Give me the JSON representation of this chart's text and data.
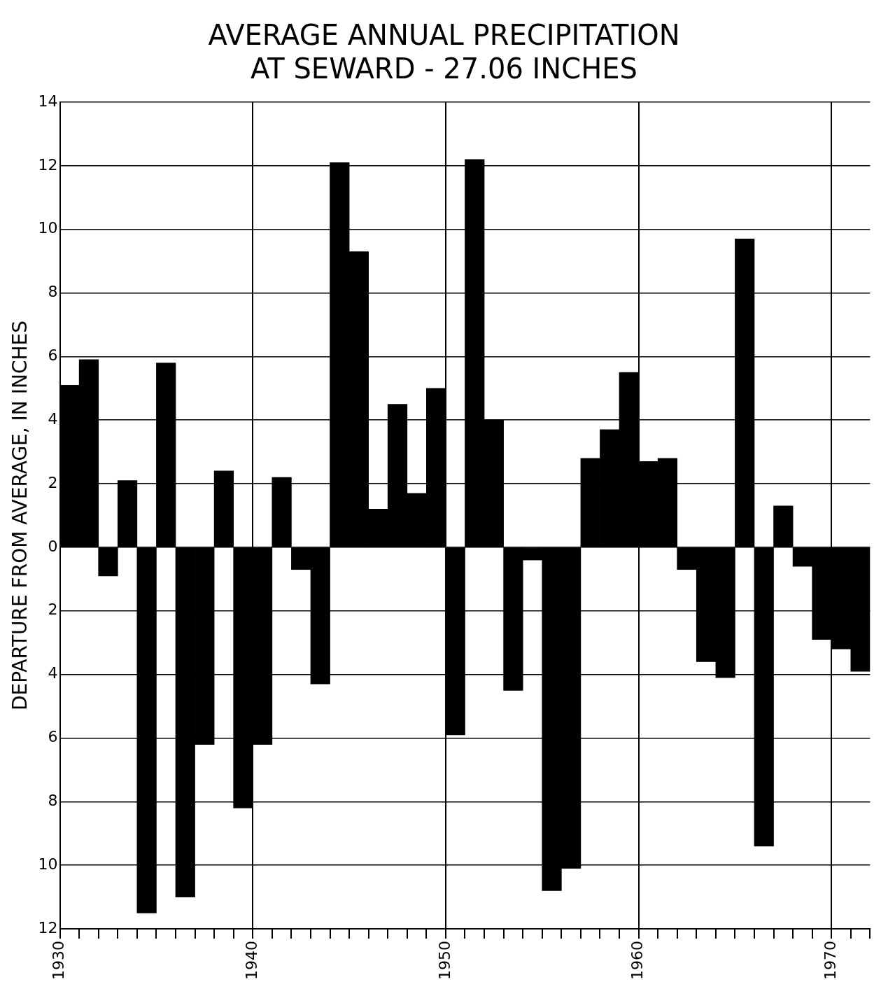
{
  "chart_data": {
    "type": "bar",
    "title": "AVERAGE ANNUAL PRECIPITATION\nAT SEWARD - 27.06 INCHES",
    "ylabel": "DEPARTURE FROM AVERAGE, IN INCHES",
    "categories": [
      "1930",
      null,
      null,
      null,
      null,
      null,
      null,
      null,
      null,
      null,
      "1940",
      null,
      null,
      null,
      null,
      null,
      null,
      null,
      null,
      null,
      "1950",
      null,
      null,
      null,
      null,
      null,
      null,
      null,
      null,
      null,
      "1960",
      null,
      null,
      null,
      null,
      null,
      null,
      null,
      null,
      null,
      "1970",
      null
    ],
    "values": [
      5.1,
      5.9,
      -0.9,
      2.1,
      -11.5,
      5.8,
      -11.0,
      -6.2,
      2.4,
      -8.2,
      -6.2,
      2.2,
      -0.7,
      -4.3,
      12.1,
      9.3,
      1.2,
      4.5,
      1.7,
      5.0,
      -5.9,
      12.2,
      4.0,
      -4.5,
      -0.4,
      -10.8,
      -10.1,
      2.8,
      3.7,
      5.5,
      2.7,
      2.8,
      -0.7,
      -3.6,
      -4.1,
      9.7,
      -9.4,
      1.3,
      -0.6,
      -2.9,
      -3.2,
      -3.9
    ],
    "color": "#000000",
    "ylim": [
      -12,
      14
    ],
    "yticks": [
      {
        "value": -12,
        "label": "12"
      },
      {
        "value": -10,
        "label": "10"
      },
      {
        "value": -8,
        "label": "8"
      },
      {
        "value": -6,
        "label": "6"
      },
      {
        "value": -4,
        "label": "4"
      },
      {
        "value": -2,
        "label": "2"
      },
      0,
      2,
      4,
      6,
      8,
      10,
      12,
      14
    ],
    "grid": true
  }
}
